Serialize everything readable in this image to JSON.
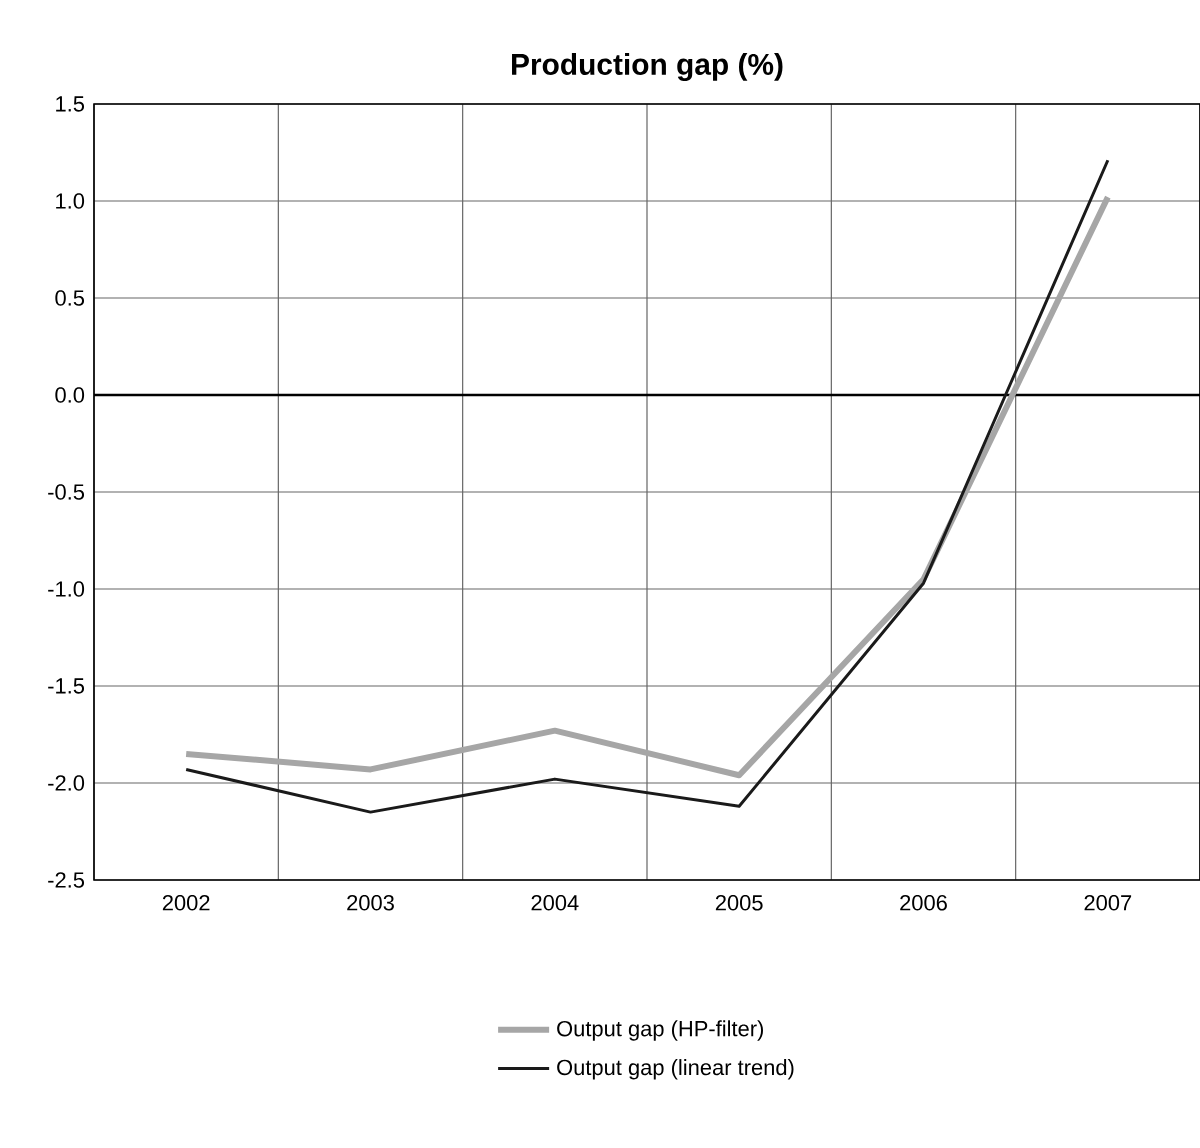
{
  "chart_data": {
    "type": "line",
    "title": "Production gap (%)",
    "categories": [
      "2002",
      "2003",
      "2004",
      "2005",
      "2006",
      "2007"
    ],
    "series": [
      {
        "name": "Output gap (HP-filter)",
        "color": "#a6a6a6",
        "values": [
          -1.85,
          -1.93,
          -1.73,
          -1.96,
          -0.95,
          1.02
        ]
      },
      {
        "name": "Output gap (linear trend)",
        "color": "#1a1a1a",
        "values": [
          -1.93,
          -2.15,
          -1.98,
          -2.12,
          -0.97,
          1.21
        ]
      }
    ],
    "ylim": [
      -2.5,
      1.5
    ],
    "yticks": [
      {
        "value": -2.5,
        "label": "-2.5"
      },
      {
        "value": -2.0,
        "label": "-2.0"
      },
      {
        "value": -1.5,
        "label": "-1.5"
      },
      {
        "value": -1.0,
        "label": "-1.0"
      },
      {
        "value": -0.5,
        "label": "-0.5"
      },
      {
        "value": 0.0,
        "label": "0.0"
      },
      {
        "value": 0.5,
        "label": "0.5"
      },
      {
        "value": 1.0,
        "label": "1.0"
      },
      {
        "value": 1.5,
        "label": "1.5"
      }
    ],
    "ref_lines": [
      {
        "axis": "y",
        "value": 0,
        "color": "#000000"
      }
    ],
    "grid": true,
    "legend": "bottom"
  }
}
